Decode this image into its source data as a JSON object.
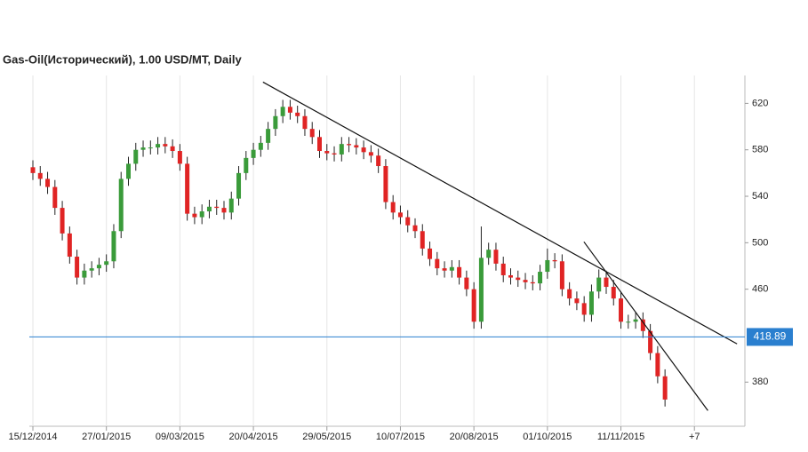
{
  "chart_data": {
    "type": "candlestick",
    "title": "Gas-Oil(Исторический), 1.00 USD/MT, Daily",
    "x": [
      0,
      3,
      6,
      9,
      12,
      15,
      18,
      21,
      24,
      27,
      30,
      33,
      36,
      39,
      42,
      45,
      48,
      51,
      54,
      57,
      60,
      63,
      66,
      69,
      72,
      75,
      78,
      81,
      84,
      87,
      90,
      93,
      96,
      99,
      102,
      105,
      108,
      111,
      114,
      117,
      120,
      123,
      126,
      129,
      132,
      135,
      138,
      141,
      144,
      147,
      150,
      153,
      156,
      159,
      162,
      165,
      168,
      171,
      174,
      177,
      180,
      183,
      186,
      189,
      192,
      195,
      198,
      201,
      204,
      207,
      210,
      213,
      216,
      219,
      222,
      225,
      228,
      231,
      234,
      237,
      240,
      243,
      246,
      249,
      252,
      255,
      258
    ],
    "open": [
      565,
      560,
      555,
      548,
      530,
      508,
      488,
      470,
      476,
      478,
      481,
      484,
      510,
      555,
      568,
      580,
      582,
      582,
      585,
      583,
      579,
      568,
      525,
      522,
      527,
      531,
      530,
      526,
      538,
      560,
      573,
      580,
      586,
      598,
      609,
      617,
      612,
      609,
      598,
      591,
      579,
      577,
      576,
      585,
      584,
      582,
      578,
      575,
      566,
      535,
      526,
      522,
      515,
      510,
      495,
      486,
      478,
      476,
      479,
      470,
      460,
      432,
      487,
      494,
      482,
      472,
      470,
      468,
      466,
      465,
      475,
      485,
      484,
      460,
      452,
      448,
      438,
      458,
      470,
      462,
      452,
      432,
      432,
      434,
      424,
      405,
      385
    ],
    "high": [
      571,
      566,
      561,
      554,
      536,
      514,
      494,
      482,
      484,
      487,
      490,
      516,
      561,
      574,
      586,
      588,
      588,
      591,
      591,
      589,
      585,
      574,
      531,
      533,
      537,
      537,
      536,
      544,
      566,
      579,
      586,
      592,
      604,
      615,
      623,
      623,
      618,
      615,
      604,
      597,
      585,
      583,
      591,
      591,
      590,
      588,
      584,
      581,
      572,
      541,
      532,
      528,
      521,
      516,
      501,
      492,
      484,
      485,
      485,
      476,
      466,
      514,
      500,
      500,
      488,
      478,
      476,
      474,
      472,
      481,
      495,
      491,
      490,
      466,
      458,
      454,
      464,
      477,
      476,
      468,
      458,
      438,
      440,
      440,
      430,
      411,
      391
    ],
    "low": [
      554,
      549,
      542,
      524,
      502,
      482,
      464,
      464,
      470,
      472,
      475,
      478,
      504,
      549,
      562,
      574,
      576,
      576,
      577,
      573,
      562,
      519,
      516,
      516,
      521,
      524,
      520,
      520,
      532,
      554,
      567,
      574,
      580,
      592,
      603,
      606,
      603,
      592,
      585,
      573,
      571,
      570,
      570,
      578,
      576,
      572,
      569,
      560,
      529,
      520,
      516,
      509,
      504,
      489,
      480,
      472,
      470,
      470,
      464,
      454,
      426,
      426,
      481,
      476,
      466,
      464,
      462,
      460,
      459,
      459,
      469,
      478,
      454,
      446,
      442,
      432,
      432,
      452,
      456,
      446,
      426,
      426,
      426,
      418,
      399,
      379,
      359
    ],
    "close": [
      560,
      555,
      548,
      530,
      508,
      488,
      470,
      476,
      478,
      481,
      484,
      510,
      555,
      568,
      580,
      582,
      582,
      585,
      583,
      579,
      568,
      525,
      522,
      527,
      531,
      530,
      526,
      538,
      560,
      573,
      580,
      586,
      598,
      609,
      617,
      612,
      609,
      598,
      591,
      579,
      577,
      576,
      585,
      584,
      582,
      578,
      575,
      566,
      535,
      526,
      522,
      515,
      510,
      495,
      486,
      478,
      476,
      479,
      470,
      460,
      432,
      487,
      494,
      482,
      472,
      470,
      468,
      466,
      465,
      475,
      485,
      484,
      460,
      452,
      448,
      438,
      458,
      470,
      462,
      452,
      432,
      432,
      434,
      424,
      405,
      385,
      365
    ],
    "up_color": "#3a9b3a",
    "down_color": "#e02424",
    "xlim": [
      -1.45,
      290.6
    ],
    "ylim": [
      342,
      644
    ],
    "xticks": [
      {
        "value": 0,
        "label": "15/12/2014"
      },
      {
        "value": 30,
        "label": "27/01/2015"
      },
      {
        "value": 60,
        "label": "09/03/2015"
      },
      {
        "value": 90,
        "label": "20/04/2015"
      },
      {
        "value": 120,
        "label": "29/05/2015"
      },
      {
        "value": 150,
        "label": "10/07/2015"
      },
      {
        "value": 180,
        "label": "20/08/2015"
      },
      {
        "value": 210,
        "label": "01/10/2015"
      },
      {
        "value": 240,
        "label": "11/11/2015"
      },
      {
        "value": 270,
        "label": "+7"
      }
    ],
    "yticks": [
      380,
      460,
      500,
      540,
      580,
      620
    ],
    "current_price": 418.89,
    "current_price_color": "#2a7fcf",
    "trend_lines": [
      {
        "x": [
          93.9,
          287.4
        ],
        "y": [
          638.3,
          412.9
        ]
      },
      {
        "x": [
          224.9,
          275.5
        ],
        "y": [
          500.8,
          355.5
        ]
      }
    ]
  }
}
